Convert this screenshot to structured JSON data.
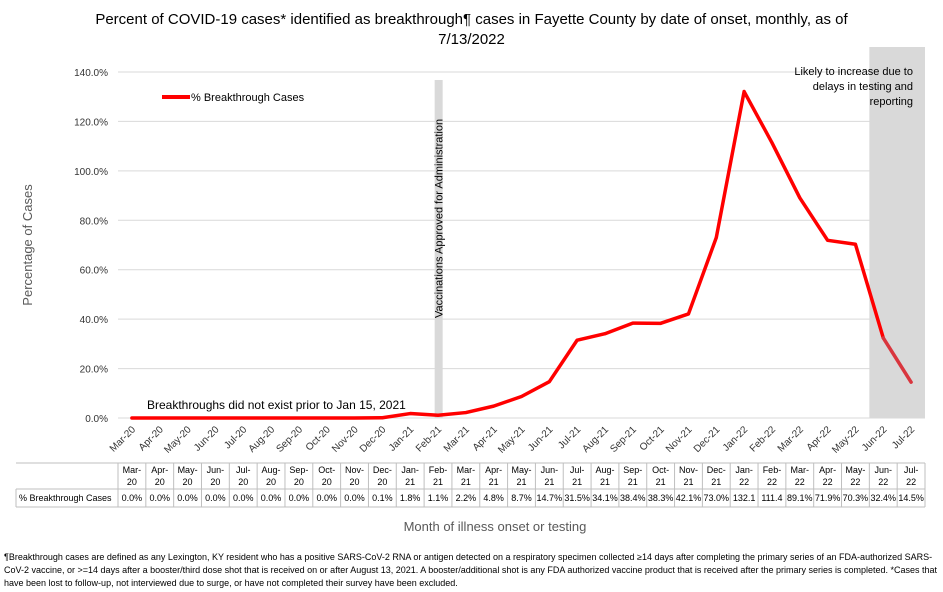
{
  "title_line1": "Percent of COVID-19 cases* identified as breakthrough¶ cases in Fayette County by date of onset, monthly, as of",
  "title_line2": "7/13/2022",
  "footnote": "¶Breakthrough cases are defined as any Lexington, KY resident who has a positive SARS-CoV-2 RNA or antigen detected on a respiratory specimen collected ≥14 days after completing the primary series of an FDA-authorized SARS-CoV-2 vaccine, or >=14 days after a booster/third dose shot that is received on or after August 13, 2021.  A booster/additional shot is any FDA authorized vaccine product that is received after the primary series is completed. *Cases that have been lost to follow-up, not interviewed due to surge, or have not completed their survey have been excluded.",
  "colors": {
    "series": "#ff0000",
    "series_shaded": "#d9363e",
    "shade": "#d9d9d9",
    "grid": "#d9d9d9"
  },
  "chart_data": {
    "type": "line",
    "title": "Percent of COVID-19 cases* identified as breakthrough¶ cases in Fayette County by date of onset, monthly, as of 7/13/2022",
    "xlabel": "Month of illness onset or testing",
    "ylabel": "Percentage of Cases",
    "ylim": [
      0,
      140
    ],
    "yticks": [
      "0.0%",
      "20.0%",
      "40.0%",
      "60.0%",
      "80.0%",
      "100.0%",
      "120.0%",
      "140.0%"
    ],
    "grid": true,
    "legend_position": "top-left",
    "categories": [
      "Mar-20",
      "Apr-20",
      "May-20",
      "Jun-20",
      "Jul-20",
      "Aug-20",
      "Sep-20",
      "Oct-20",
      "Nov-20",
      "Dec-20",
      "Jan-21",
      "Feb-21",
      "Mar-21",
      "Apr-21",
      "May-21",
      "Jun-21",
      "Jul-21",
      "Aug-21",
      "Sep-21",
      "Oct-21",
      "Nov-21",
      "Dec-21",
      "Jan-22",
      "Feb-22",
      "Mar-22",
      "Apr-22",
      "May-22",
      "Jun-22",
      "Jul-22"
    ],
    "table_categories": [
      [
        "Mar-",
        "20"
      ],
      [
        "Apr-",
        "20"
      ],
      [
        "May-",
        "20"
      ],
      [
        "Jun-",
        "20"
      ],
      [
        "Jul-",
        "20"
      ],
      [
        "Aug-",
        "20"
      ],
      [
        "Sep-",
        "20"
      ],
      [
        "Oct-",
        "20"
      ],
      [
        "Nov-",
        "20"
      ],
      [
        "Dec-",
        "20"
      ],
      [
        "Jan-",
        "21"
      ],
      [
        "Feb-",
        "21"
      ],
      [
        "Mar-",
        "21"
      ],
      [
        "Apr-",
        "21"
      ],
      [
        "May-",
        "21"
      ],
      [
        "Jun-",
        "21"
      ],
      [
        "Jul-",
        "21"
      ],
      [
        "Aug-",
        "21"
      ],
      [
        "Sep-",
        "21"
      ],
      [
        "Oct-",
        "21"
      ],
      [
        "Nov-",
        "21"
      ],
      [
        "Dec-",
        "21"
      ],
      [
        "Jan-",
        "22"
      ],
      [
        "Feb-",
        "22"
      ],
      [
        "Mar-",
        "22"
      ],
      [
        "Apr-",
        "22"
      ],
      [
        "May-",
        "22"
      ],
      [
        "Jun-",
        "22"
      ],
      [
        "Jul-",
        "22"
      ]
    ],
    "series": [
      {
        "name": "% Breakthrough Cases",
        "values": [
          0.0,
          0.0,
          0.0,
          0.0,
          0.0,
          0.0,
          0.0,
          0.0,
          0.0,
          0.1,
          1.8,
          1.1,
          2.2,
          4.8,
          8.7,
          14.7,
          31.5,
          34.1,
          38.4,
          38.3,
          42.1,
          73.0,
          132.1,
          111.4,
          89.1,
          71.9,
          70.3,
          32.4,
          14.5
        ],
        "labels": [
          "0.0%",
          "0.0%",
          "0.0%",
          "0.0%",
          "0.0%",
          "0.0%",
          "0.0%",
          "0.0%",
          "0.0%",
          "0.1%",
          "1.8%",
          "1.1%",
          "2.2%",
          "4.8%",
          "8.7%",
          "14.7%",
          "31.5%",
          "34.1%",
          "38.4%",
          "38.3%",
          "42.1%",
          "73.0%",
          "132.1",
          "111.4",
          "89.1%",
          "71.9%",
          "70.3%",
          "32.4%",
          "14.5%"
        ]
      }
    ],
    "annotations": {
      "vaccination": "Vaccinations Approved for Administration",
      "no_breakthrough": "Breakthroughs did not exist prior to Jan 15, 2021",
      "shaded_region": [
        "Likely to increase due to",
        "delays in testing and",
        "reporting"
      ]
    }
  }
}
